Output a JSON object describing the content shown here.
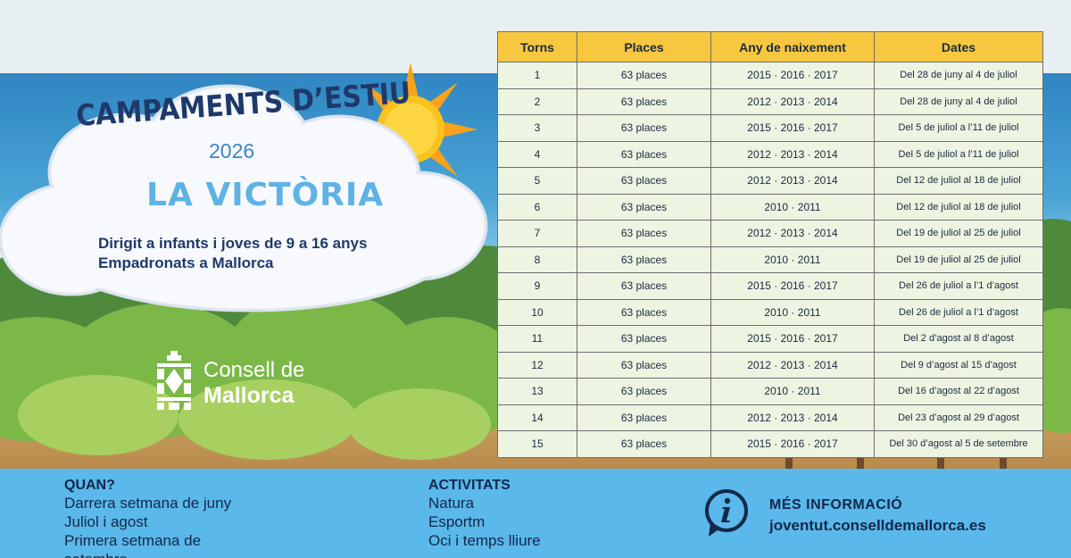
{
  "poster": {
    "title": "CAMPAMENTS D’ESTIU",
    "year": "2026",
    "place": "LA VICTÒRIA",
    "target_line1": "Dirigit a infants i joves de 9 a 16 anys",
    "target_line2": "Empadronats a Mallorca"
  },
  "logo": {
    "line1": "Consell de",
    "line2": "Mallorca"
  },
  "table": {
    "headers": [
      "Torns",
      "Places",
      "Any de naixement",
      "Dates"
    ],
    "rows": [
      [
        "1",
        "63 places",
        "2015 · 2016 · 2017",
        "Del 28 de juny al 4 de juliol"
      ],
      [
        "2",
        "63 places",
        "2012 · 2013 · 2014",
        "Del 28 de juny al 4 de juliol"
      ],
      [
        "3",
        "63 places",
        "2015 · 2016 · 2017",
        "Del 5 de juliol a l’11 de juliol"
      ],
      [
        "4",
        "63 places",
        "2012 · 2013 · 2014",
        "Del 5 de juliol a l’11 de juliol"
      ],
      [
        "5",
        "63 places",
        "2012 · 2013 · 2014",
        "Del 12 de juliol al 18 de juliol"
      ],
      [
        "6",
        "63 places",
        "2010 · 2011",
        "Del 12 de juliol al 18 de juliol"
      ],
      [
        "7",
        "63 places",
        "2012 · 2013 · 2014",
        "Del 19 de juliol al 25 de juliol"
      ],
      [
        "8",
        "63 places",
        "2010 · 2011",
        "Del 19 de juliol al 25 de juliol"
      ],
      [
        "9",
        "63 places",
        "2015 · 2016 · 2017",
        "Del 26 de juliol a l’1 d’agost"
      ],
      [
        "10",
        "63 places",
        "2010 · 2011",
        "Del 26 de juliol a l’1 d’agost"
      ],
      [
        "11",
        "63 places",
        "2015 · 2016 · 2017",
        "Del 2 d’agost al 8 d’agost"
      ],
      [
        "12",
        "63 places",
        "2012 · 2013 · 2014",
        "Del 9 d’agost al 15 d’agost"
      ],
      [
        "13",
        "63 places",
        "2010 · 2011",
        "Del 16 d’agost al 22 d’agost"
      ],
      [
        "14",
        "63 places",
        "2012 · 2013 · 2014",
        "Del 23 d’agost al 29 d’agost"
      ],
      [
        "15",
        "63 places",
        "2015 · 2016 · 2017",
        "Del 30 d’agost al 5 de setembre"
      ]
    ]
  },
  "footer": {
    "quan": {
      "heading": "QUAN?",
      "lines": [
        "Darrera setmana de juny",
        "Juliol i agost",
        "Primera setmana de",
        "setembre"
      ]
    },
    "activitats": {
      "heading": "ACTIVITATS",
      "lines": [
        "Natura",
        "Esportm",
        "Oci i temps lliure"
      ]
    },
    "info": {
      "heading": "MÉS INFORMACIÓ",
      "url": "joventut.conselldemallorca.es"
    }
  },
  "colors": {
    "header_yellow": "#f7c83f",
    "footer_blue": "#5ab8ea",
    "navy": "#1e3a6b",
    "light_blue": "#5fb2e4"
  }
}
